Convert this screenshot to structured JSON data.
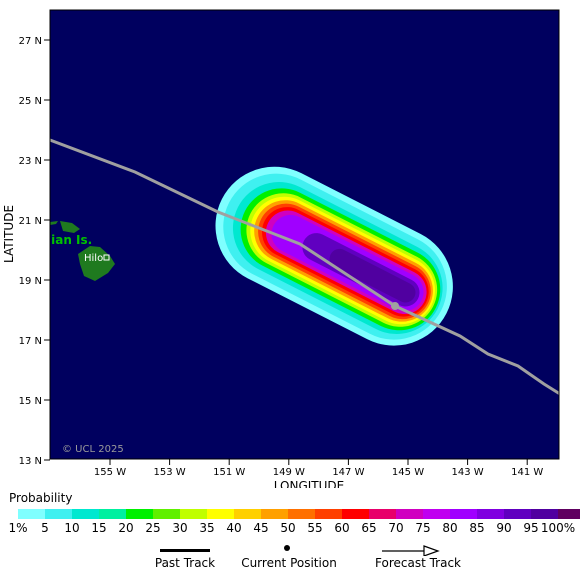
{
  "map": {
    "lat_labels": [
      "27 N",
      "25 N",
      "23 N",
      "21 N",
      "19 N",
      "17 N",
      "15 N",
      "13 N"
    ],
    "lon_labels": [
      "155 W",
      "153 W",
      "151 W",
      "149 W",
      "147 W",
      "145 W",
      "143 W",
      "141 W"
    ],
    "y_axis_title": "LATITUDE",
    "x_axis_title": "LONGITUDE",
    "island_label": "iian Is.",
    "city_label": "Hilo",
    "copyright": "© UCL 2025",
    "ocean_color": "#00005f",
    "land_color": "#1f7a1f",
    "track_color": "#a0a0a0"
  },
  "legend": {
    "title": "Probability",
    "labels": [
      "1%",
      "5",
      "10",
      "15",
      "20",
      "25",
      "30",
      "35",
      "40",
      "45",
      "50",
      "55",
      "60",
      "65",
      "70",
      "75",
      "80",
      "85",
      "90",
      "95",
      "100%"
    ],
    "colors": [
      "#7fffff",
      "#3ff0f0",
      "#00e8d0",
      "#00f0a0",
      "#00f000",
      "#60f000",
      "#c0ff00",
      "#ffff00",
      "#ffd000",
      "#ffa000",
      "#ff7000",
      "#ff4000",
      "#ff0000",
      "#e8006a",
      "#d000c0",
      "#c000f0",
      "#a000ff",
      "#8000e0",
      "#6000c0",
      "#5000a0",
      "#600060"
    ],
    "past_track": "Past Track",
    "current_position": "Current Position",
    "forecast_track": "Forecast Track"
  }
}
